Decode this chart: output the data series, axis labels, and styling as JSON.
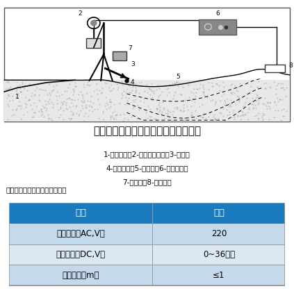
{
  "title": "水枪法防渗土工膜渗漏破损探测工况图",
  "caption_line1": "1-供水水管；2-声音报警耳机；3-水枪；",
  "caption_line2": "4-破损孔洞；5-土工膜；6-供电电源；",
  "caption_line3": "7-探测仪；8-接地电极",
  "table_title": "水枪法探测设备主要技术指标：",
  "header_bg": "#1a7bbf",
  "header_text": "#ffffff",
  "row1_bg": "#c5d9ed",
  "row2_bg": "#dce9f5",
  "row3_bg": "#c5d9ed",
  "col1_header": "项目",
  "col2_header": "指标",
  "rows": [
    [
      "输入电压（AC,V）",
      "220"
    ],
    [
      "输出电压（DC,V）",
      "0~36可调"
    ],
    [
      "探测宽度（m）",
      "≤1"
    ]
  ],
  "bg_color": "#ffffff"
}
